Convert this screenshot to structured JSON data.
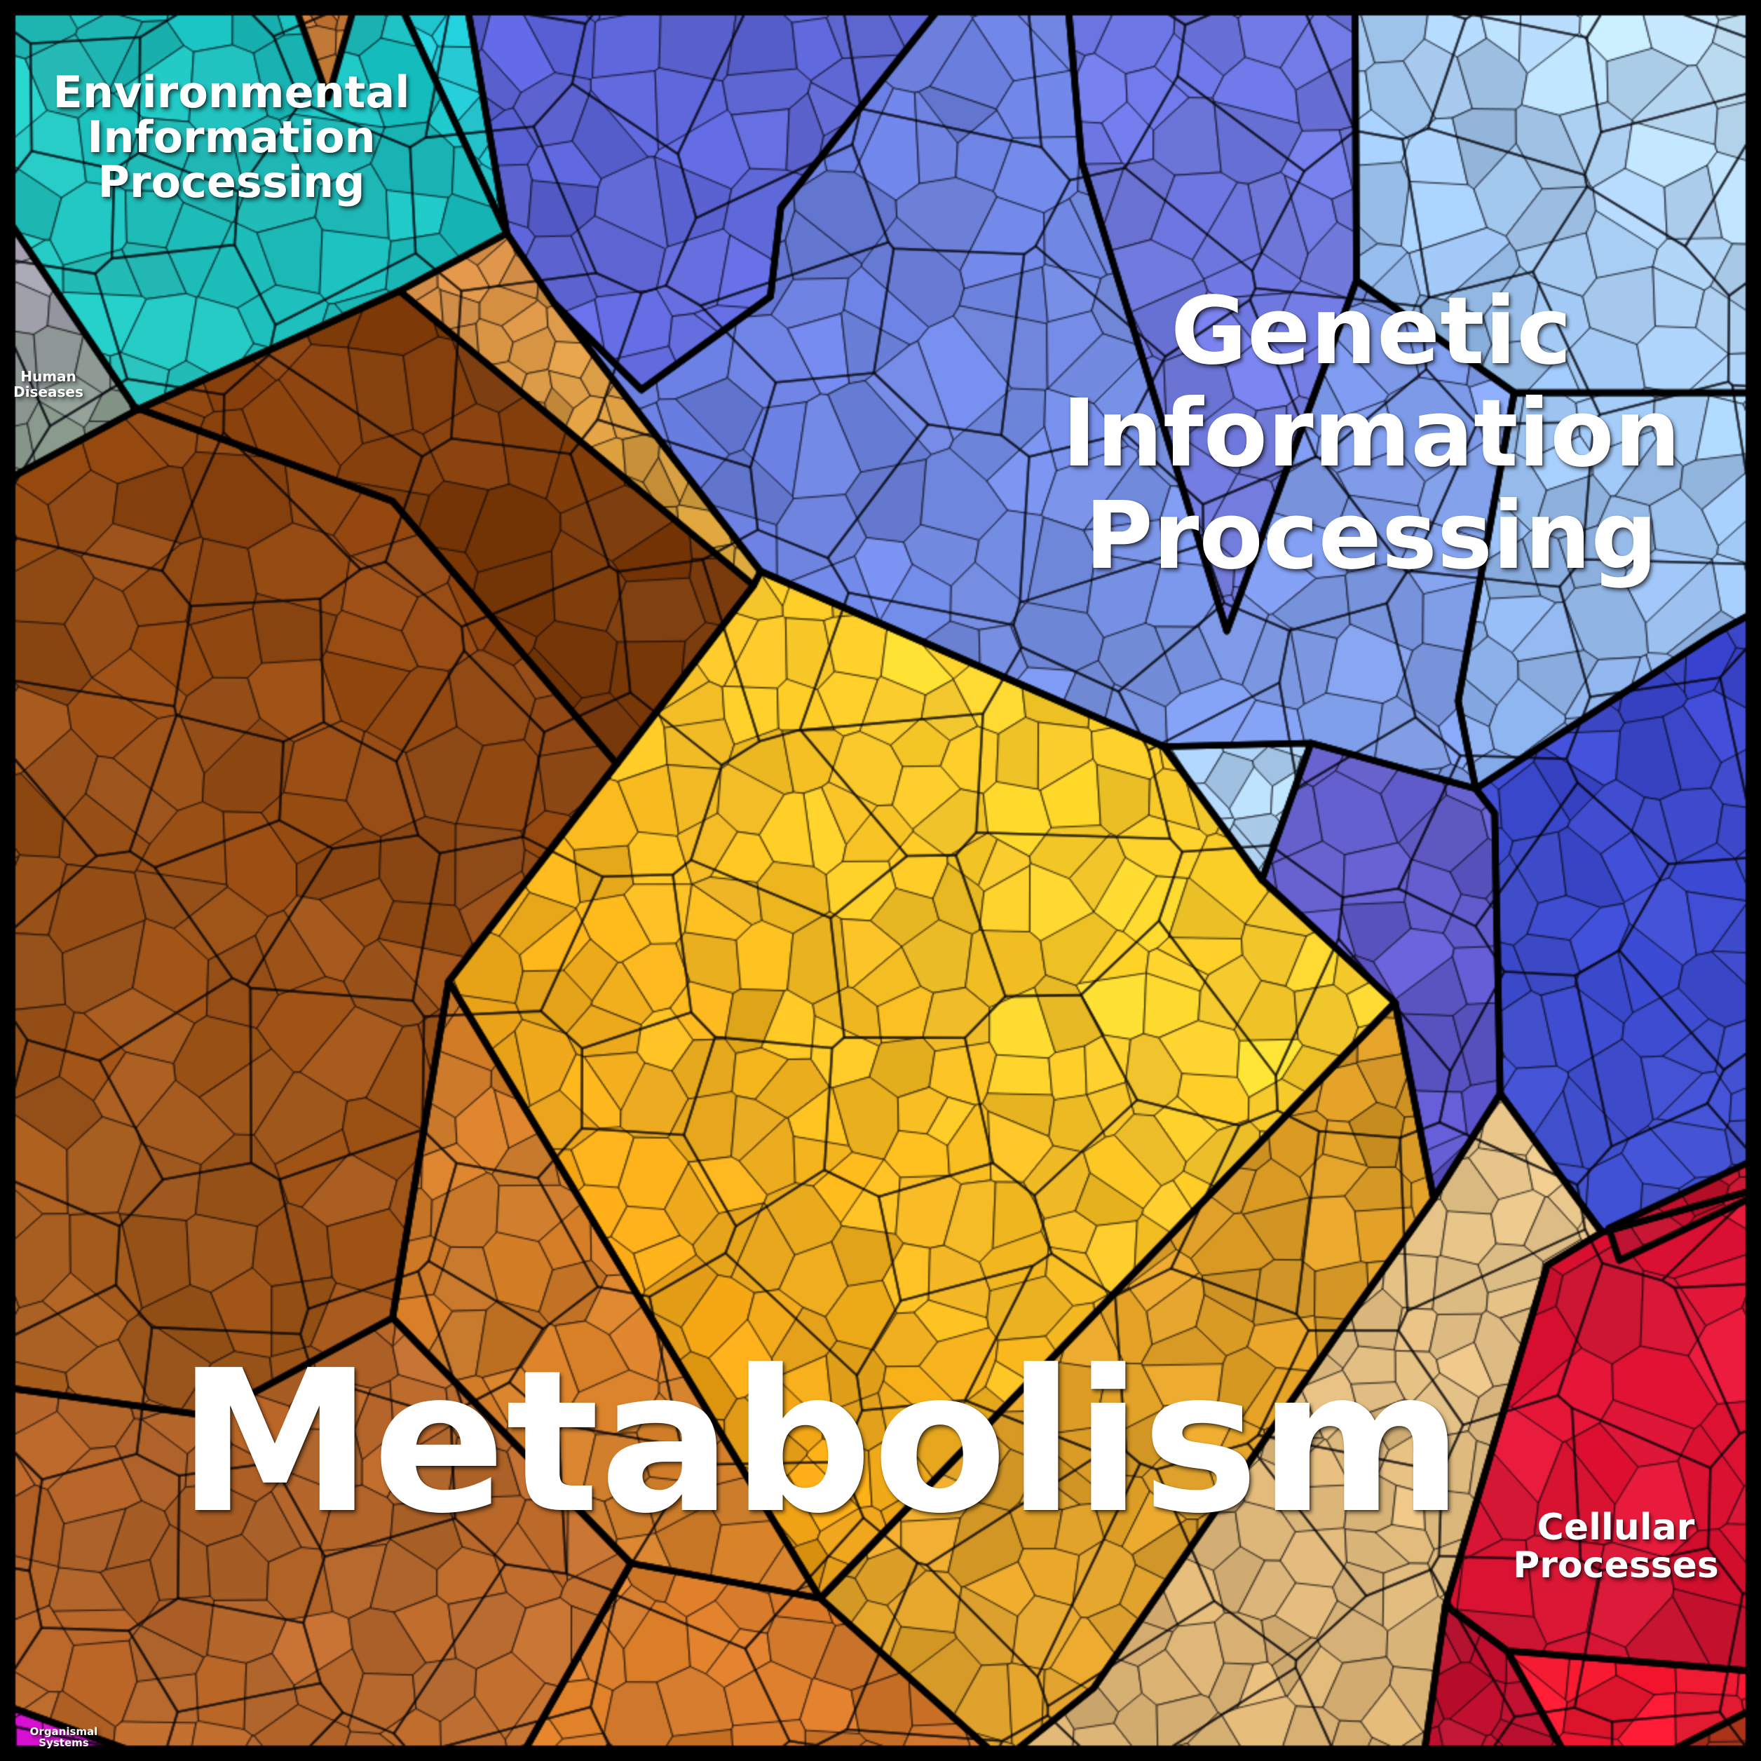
{
  "title": "KEGG pathway categories voronoi treemap",
  "chart_data": {
    "type": "treemap",
    "style": "voronoi-mosaic",
    "legend_position": "none",
    "grid": false,
    "categories": [
      "Metabolism",
      "Genetic Information Processing",
      "Environmental Information Processing",
      "Cellular Processes",
      "Human Diseases",
      "Organismal Systems"
    ],
    "series": [
      {
        "name": "Metabolism",
        "color": "#f2a51a",
        "labeled": true
      },
      {
        "name": "Genetic Information Processing",
        "color": "#6f86e2",
        "labeled": true
      },
      {
        "name": "Environmental Information Processing",
        "color": "#17b9bb",
        "labeled": true
      },
      {
        "name": "Cellular Processes",
        "color": "#dc1536",
        "labeled": true
      },
      {
        "name": "Human Diseases",
        "color": "#9a98a2",
        "labeled": true
      },
      {
        "name": "Organismal Systems",
        "color": "#d614ce",
        "labeled": true
      }
    ]
  },
  "labels": {
    "environmental": {
      "lines": [
        "Environmental",
        "Information",
        "Processing"
      ]
    },
    "genetic": {
      "lines": [
        "Genetic",
        "Information",
        "Processing"
      ]
    },
    "metabolism": {
      "lines": [
        "Metabolism"
      ]
    },
    "cellular": {
      "lines": [
        "Cellular",
        "Processes"
      ]
    },
    "human_diseases": {
      "lines": [
        "Human",
        "Diseases"
      ]
    },
    "organismal": {
      "lines": [
        "Organismal",
        "Systems"
      ]
    }
  },
  "render": {
    "size": 2512,
    "frame_color": "#000000",
    "frame_width": 22,
    "border_width": 9.5,
    "fine_line": {
      "width": 1.55,
      "color": "rgba(8,8,14,0.85)"
    },
    "medium_line": {
      "width": 3.1,
      "color": "rgba(4,4,10,0.62)",
      "spacing": 205
    },
    "jitter": 0.46,
    "regions": [
      {
        "id": "teal-env-info",
        "c1": "#17b9bb",
        "c2": "#26c6bf",
        "g": [
          760,
          120,
          120,
          540
        ],
        "sp": 88,
        "salt": 11,
        "poly": [
          [
            0,
            0
          ],
          [
            568,
            0
          ],
          [
            723,
            333
          ],
          [
            570,
            415
          ],
          [
            195,
            585
          ],
          [
            0,
            296
          ]
        ]
      },
      {
        "id": "cyan-wedge",
        "c1": "#1fc6d2",
        "c2": "#2ad2da",
        "g": [
          580,
          30,
          720,
          300
        ],
        "sp": 64,
        "salt": 12,
        "poly": [
          [
            568,
            0
          ],
          [
            665,
            0
          ],
          [
            723,
            333
          ]
        ]
      },
      {
        "id": "orange-top-wedge",
        "c1": "#c87434",
        "c2": "#d08a3c",
        "g": [
          420,
          0,
          500,
          120
        ],
        "sp": 48,
        "salt": 13,
        "poly": [
          [
            418,
            0
          ],
          [
            508,
            0
          ],
          [
            468,
            140
          ]
        ]
      },
      {
        "id": "gray-human-diseases",
        "c1": "#a09aac",
        "c2": "#8c9e90",
        "g": [
          40,
          340,
          120,
          620
        ],
        "sp": 60,
        "salt": 14,
        "poly": [
          [
            0,
            296
          ],
          [
            195,
            585
          ],
          [
            0,
            690
          ]
        ]
      },
      {
        "id": "brown-dark-ne",
        "c1": "#8a430e",
        "c2": "#76380a",
        "g": [
          300,
          560,
          1020,
          820
        ],
        "sp": 100,
        "salt": 15,
        "poly": [
          [
            195,
            585
          ],
          [
            570,
            415
          ],
          [
            690,
            515
          ],
          [
            1075,
            835
          ],
          [
            880,
            1090
          ],
          [
            560,
            715
          ],
          [
            190,
            580
          ]
        ]
      },
      {
        "id": "brown-sienna-sw",
        "c1": "#8c4410",
        "c2": "#a55c1e",
        "g": [
          850,
          800,
          120,
          1900
        ],
        "sp": 96,
        "salt": 16,
        "poly": [
          [
            190,
            580
          ],
          [
            560,
            715
          ],
          [
            880,
            1090
          ],
          [
            640,
            1400
          ],
          [
            560,
            1880
          ],
          [
            300,
            2020
          ],
          [
            0,
            1978
          ],
          [
            0,
            690
          ],
          [
            195,
            585
          ]
        ]
      },
      {
        "id": "tan-strip",
        "c1": "#d89048",
        "c2": "#d4a43c",
        "g": [
          723,
          333,
          1085,
          815
        ],
        "sp": 52,
        "salt": 17,
        "poly": [
          [
            723,
            333
          ],
          [
            790,
            432
          ],
          [
            1085,
            815
          ],
          [
            1075,
            835
          ],
          [
            690,
            515
          ],
          [
            570,
            415
          ]
        ]
      },
      {
        "id": "gold-center",
        "c1": "#ee9e14",
        "c2": "#ffd12d",
        "g": [
          760,
          1850,
          1500,
          1250
        ],
        "sp": 74,
        "salt": 18,
        "poly": [
          [
            1075,
            835
          ],
          [
            1085,
            815
          ],
          [
            1660,
            1065
          ],
          [
            1800,
            1255
          ],
          [
            1990,
            1430
          ],
          [
            1170,
            2280
          ],
          [
            640,
            1400
          ]
        ]
      },
      {
        "id": "orange-o1-sienna",
        "c1": "#b06228",
        "c2": "#bc6c2e",
        "g": [
          0,
          2000,
          800,
          2300
        ],
        "sp": 82,
        "salt": 19,
        "poly": [
          [
            0,
            1978
          ],
          [
            300,
            2020
          ],
          [
            560,
            1880
          ],
          [
            900,
            2230
          ],
          [
            740,
            2512
          ],
          [
            228,
            2512
          ],
          [
            0,
            2430
          ]
        ]
      },
      {
        "id": "orange-o2-band",
        "c1": "#cf7a28",
        "c2": "#d8842e",
        "g": [
          600,
          1600,
          1100,
          2200
        ],
        "sp": 78,
        "salt": 20,
        "poly": [
          [
            640,
            1400
          ],
          [
            1170,
            2280
          ],
          [
            900,
            2230
          ],
          [
            560,
            1880
          ]
        ]
      },
      {
        "id": "orange-o3-bottom",
        "c1": "#dd812e",
        "c2": "#d3762a",
        "g": [
          900,
          2250,
          1300,
          2500
        ],
        "sp": 80,
        "salt": 21,
        "poly": [
          [
            900,
            2230
          ],
          [
            1170,
            2280
          ],
          [
            1430,
            2512
          ],
          [
            740,
            2512
          ]
        ]
      },
      {
        "id": "mustard-se",
        "c1": "#e2a42c",
        "c2": "#d99a26",
        "g": [
          1300,
          2300,
          2000,
          1600
        ],
        "sp": 72,
        "salt": 22,
        "poly": [
          [
            1170,
            2280
          ],
          [
            1990,
            1430
          ],
          [
            2045,
            1710
          ],
          [
            1910,
            1900
          ],
          [
            1560,
            2408
          ],
          [
            1430,
            2512
          ]
        ]
      },
      {
        "id": "tan-khaki",
        "c1": "#d8b072",
        "c2": "#e4c288",
        "g": [
          1700,
          2400,
          2200,
          1850
        ],
        "sp": 66,
        "salt": 23,
        "poly": [
          [
            2140,
            1560
          ],
          [
            2285,
            1758
          ],
          [
            2207,
            1805
          ],
          [
            2062,
            2290
          ],
          [
            2030,
            2512
          ],
          [
            1430,
            2512
          ],
          [
            1560,
            2408
          ],
          [
            1910,
            1900
          ],
          [
            2045,
            1710
          ]
        ]
      },
      {
        "id": "magenta-organismal",
        "c1": "#d614ce",
        "c2": "#c912c2",
        "g": [
          0,
          2430,
          200,
          2510
        ],
        "sp": 46,
        "salt": 24,
        "poly": [
          [
            0,
            2430
          ],
          [
            225,
            2512
          ],
          [
            0,
            2512
          ]
        ]
      },
      {
        "id": "blue-b1-topleft",
        "c1": "#5a61d6",
        "c2": "#666fdb",
        "g": [
          700,
          50,
          1300,
          400
        ],
        "sp": 86,
        "salt": 25,
        "poly": [
          [
            665,
            0
          ],
          [
            1349,
            0
          ],
          [
            1114,
            296
          ],
          [
            1099,
            423
          ],
          [
            915,
            556
          ],
          [
            790,
            432
          ],
          [
            723,
            333
          ]
        ]
      },
      {
        "id": "blue-bv-violet",
        "c1": "#6b74de",
        "c2": "#757ee2",
        "g": [
          1550,
          50,
          1900,
          700
        ],
        "sp": 84,
        "salt": 26,
        "poly": [
          [
            1523,
            0
          ],
          [
            1933,
            0
          ],
          [
            1935,
            400
          ],
          [
            1750,
            900
          ],
          [
            1543,
            230
          ]
        ]
      },
      {
        "id": "blue-b5-center",
        "c1": "#6a7ede",
        "c2": "#82a0ea",
        "g": [
          1150,
          350,
          2050,
          850
        ],
        "sp": 92,
        "salt": 27,
        "poly": [
          [
            1349,
            0
          ],
          [
            1523,
            0
          ],
          [
            1543,
            230
          ],
          [
            1750,
            900
          ],
          [
            1935,
            400
          ],
          [
            2160,
            560
          ],
          [
            2080,
            1000
          ],
          [
            2105,
            1125
          ],
          [
            1870,
            1060
          ],
          [
            1660,
            1065
          ],
          [
            1085,
            815
          ],
          [
            790,
            432
          ],
          [
            915,
            556
          ],
          [
            1099,
            423
          ],
          [
            1114,
            296
          ]
        ]
      },
      {
        "id": "blue-b3-lightsky",
        "c1": "#8fb8ec",
        "c2": "#c6e6fa",
        "g": [
          1950,
          480,
          2500,
          20
        ],
        "sp": 84,
        "salt": 28,
        "poly": [
          [
            1933,
            0
          ],
          [
            2512,
            0
          ],
          [
            2512,
            560
          ],
          [
            2160,
            560
          ],
          [
            1935,
            400
          ]
        ]
      },
      {
        "id": "blue-b9-light",
        "c1": "#86a9e6",
        "c2": "#a6cdf4",
        "g": [
          2110,
          1100,
          2500,
          600
        ],
        "sp": 78,
        "salt": 29,
        "poly": [
          [
            2160,
            560
          ],
          [
            2512,
            560
          ],
          [
            2512,
            868
          ],
          [
            2445,
            905
          ],
          [
            2105,
            1125
          ],
          [
            2080,
            1000
          ]
        ]
      },
      {
        "id": "blue-b6-palewedge",
        "c1": "#a8cbf4",
        "c2": "#b4d6f6",
        "g": [
          1660,
          1065,
          1850,
          1150
        ],
        "sp": 56,
        "salt": 30,
        "poly": [
          [
            1660,
            1065
          ],
          [
            1800,
            1255
          ],
          [
            1870,
            1060
          ]
        ]
      },
      {
        "id": "blue-b7-violet",
        "c1": "#6661ce",
        "c2": "#5c55c8",
        "g": [
          1850,
          1100,
          2120,
          1550
        ],
        "sp": 86,
        "salt": 31,
        "poly": [
          [
            1870,
            1060
          ],
          [
            2105,
            1125
          ],
          [
            2132,
            1160
          ],
          [
            2140,
            1560
          ],
          [
            2045,
            1710
          ],
          [
            1990,
            1430
          ],
          [
            1800,
            1255
          ]
        ]
      },
      {
        "id": "blue-b8-royal",
        "c1": "#3843c6",
        "c2": "#4353d2",
        "g": [
          2500,
          900,
          2200,
          1700
        ],
        "sp": 80,
        "salt": 32,
        "poly": [
          [
            2445,
            905
          ],
          [
            2512,
            868
          ],
          [
            2512,
            1695
          ],
          [
            2285,
            1758
          ],
          [
            2140,
            1560
          ],
          [
            2132,
            1160
          ],
          [
            2105,
            1125
          ]
        ]
      },
      {
        "id": "red-main",
        "c1": "#dc1536",
        "c2": "#d31432",
        "g": [
          2280,
          1800,
          2500,
          2320
        ],
        "sp": 100,
        "salt": 33,
        "poly": [
          [
            2285,
            1758
          ],
          [
            2512,
            1695
          ],
          [
            2512,
            2385
          ],
          [
            2150,
            2355
          ],
          [
            2062,
            2290
          ],
          [
            2207,
            1805
          ]
        ]
      },
      {
        "id": "red-dark-sliver",
        "c1": "#bb1230",
        "c2": "#c21534",
        "g": [
          2060,
          2300,
          2230,
          2500
        ],
        "sp": 60,
        "salt": 34,
        "poly": [
          [
            2062,
            2290
          ],
          [
            2150,
            2355
          ],
          [
            2238,
            2512
          ],
          [
            2030,
            2512
          ]
        ]
      },
      {
        "id": "red-bright-band",
        "c1": "#f2182e",
        "c2": "#ea1630",
        "g": [
          2150,
          2360,
          2500,
          2430
        ],
        "sp": 86,
        "salt": 35,
        "poly": [
          [
            2150,
            2355
          ],
          [
            2512,
            2385
          ],
          [
            2512,
            2432
          ],
          [
            2355,
            2512
          ],
          [
            2238,
            2512
          ]
        ]
      },
      {
        "id": "brick-corner",
        "c1": "#9e2c1c",
        "c2": "#a93418",
        "g": [
          2370,
          2500,
          2510,
          2440
        ],
        "sp": 52,
        "salt": 36,
        "poly": [
          [
            2512,
            2432
          ],
          [
            2512,
            2512
          ],
          [
            2355,
            2512
          ]
        ]
      },
      {
        "id": "red-strip-top",
        "c1": "#c01130",
        "c2": "#c8142f",
        "g": [
          2300,
          1760,
          2500,
          1660
        ],
        "sp": 56,
        "salt": 37,
        "poly": [
          [
            2295,
            1752
          ],
          [
            2512,
            1650
          ],
          [
            2512,
            1702
          ],
          [
            2310,
            1798
          ]
        ]
      }
    ]
  }
}
